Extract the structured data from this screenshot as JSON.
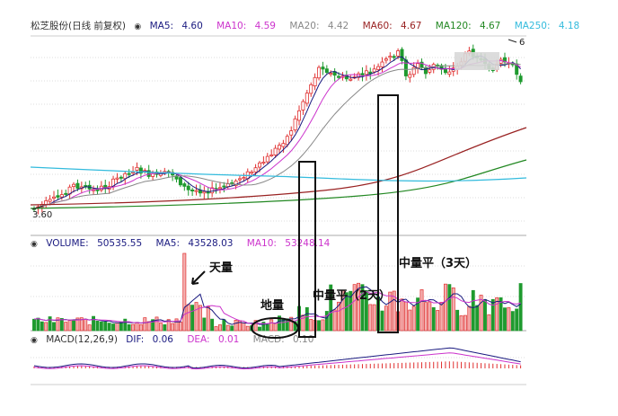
{
  "chart_data": [
    {
      "type": "candlestick",
      "title": "松芝股份(日线 前复权)",
      "ma_legend": [
        {
          "label": "MA5:",
          "value": "4.60",
          "color": "#1a1a80"
        },
        {
          "label": "MA10:",
          "value": "4.59",
          "color": "#cc33cc"
        },
        {
          "label": "MA20:",
          "value": "4.42",
          "color": "#888888"
        },
        {
          "label": "MA60:",
          "value": "4.67",
          "color": "#992222"
        },
        {
          "label": "MA120:",
          "value": "4.67",
          "color": "#228822"
        },
        {
          "label": "MA250:",
          "value": "4.18",
          "color": "#33bbdd"
        }
      ],
      "low_label": "3.60",
      "high_label": "6",
      "up_color": "#e03030",
      "down_color": "#1f9a2f"
    },
    {
      "type": "bar",
      "title": "VOLUME",
      "legend": [
        {
          "label": "VOLUME:",
          "value": "50535.55",
          "color": "#1a1a80"
        },
        {
          "label": "MA5:",
          "value": "43528.03",
          "color": "#1a1a80"
        },
        {
          "label": "MA10:",
          "value": "53248.14",
          "color": "#cc33cc"
        }
      ],
      "annotations": {
        "tian_liang": "天量",
        "di_liang": "地量",
        "zhong_liang_ping_2": "中量平（2天）",
        "zhong_liang_ping_3": "中量平（3天）"
      }
    },
    {
      "type": "line",
      "title": "MACD(12,26,9)",
      "legend": [
        {
          "label": "DIF:",
          "value": "0.06",
          "color": "#1a1a80"
        },
        {
          "label": "DEA:",
          "value": "0.01",
          "color": "#cc33cc"
        },
        {
          "label": "MACD:",
          "value": "0.10",
          "color": "#888888"
        }
      ]
    }
  ]
}
